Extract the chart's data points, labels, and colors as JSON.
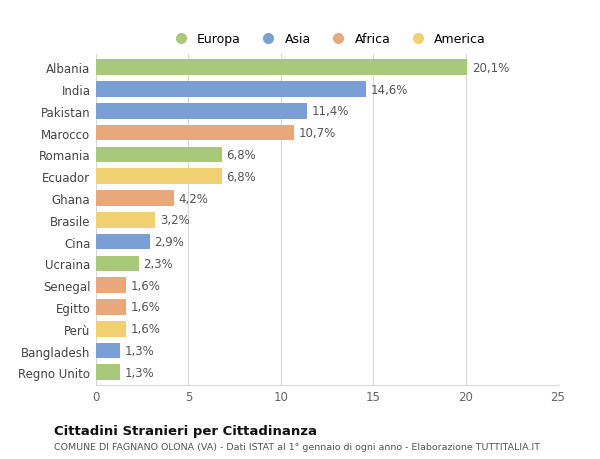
{
  "countries": [
    "Albania",
    "India",
    "Pakistan",
    "Marocco",
    "Romania",
    "Ecuador",
    "Ghana",
    "Brasile",
    "Cina",
    "Ucraina",
    "Senegal",
    "Egitto",
    "Perù",
    "Bangladesh",
    "Regno Unito"
  ],
  "values": [
    20.1,
    14.6,
    11.4,
    10.7,
    6.8,
    6.8,
    4.2,
    3.2,
    2.9,
    2.3,
    1.6,
    1.6,
    1.6,
    1.3,
    1.3
  ],
  "continents": [
    "Europa",
    "Asia",
    "Asia",
    "Africa",
    "Europa",
    "America",
    "Africa",
    "America",
    "Asia",
    "Europa",
    "Africa",
    "Africa",
    "America",
    "Asia",
    "Europa"
  ],
  "colors": {
    "Europa": "#a8c87a",
    "Asia": "#7a9fd4",
    "Africa": "#e8a87c",
    "America": "#f0d070"
  },
  "xlim": [
    0,
    25
  ],
  "xticks": [
    0,
    5,
    10,
    15,
    20,
    25
  ],
  "title": "Cittadini Stranieri per Cittadinanza",
  "subtitle": "COMUNE DI FAGNANO OLONA (VA) - Dati ISTAT al 1° gennaio di ogni anno - Elaborazione TUTTITALIA.IT",
  "bar_height": 0.72,
  "background_color": "#ffffff",
  "grid_color": "#d8d8d8",
  "label_fontsize": 8.5,
  "value_fontsize": 8.5,
  "legend_order": [
    "Europa",
    "Asia",
    "Africa",
    "America"
  ]
}
